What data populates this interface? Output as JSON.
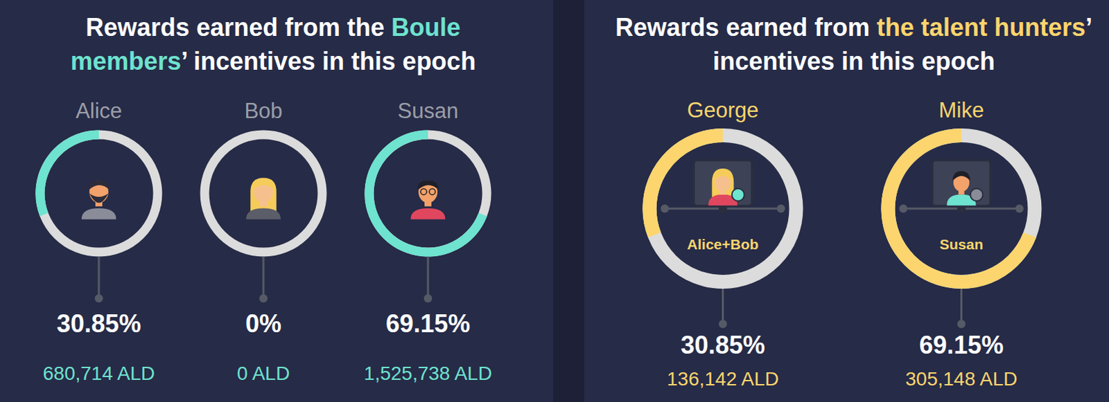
{
  "chart_data": [
    {
      "type": "donut",
      "title": [
        "Rewards earned from the ",
        "Boule members",
        "’ incentives in this epoch"
      ],
      "categories": [
        "Alice",
        "Bob",
        "Susan"
      ],
      "values": [
        30.85,
        0,
        69.15
      ],
      "value_labels": [
        "30.85%",
        "0%",
        "69.15%"
      ],
      "amounts": [
        680714,
        0,
        1525738
      ],
      "amount_labels": [
        "680,714 ALD",
        "0 ALD",
        "1,525,738 ALD"
      ],
      "color": "#6ee3cf",
      "data_labels": true
    },
    {
      "type": "donut",
      "title": [
        "Rewards earned from ",
        "the talent hunters",
        "’ incentives in this epoch"
      ],
      "categories": [
        "George",
        "Mike"
      ],
      "members": [
        "Alice+Bob",
        "Susan"
      ],
      "values": [
        30.85,
        69.15
      ],
      "value_labels": [
        "30.85%",
        "69.15%"
      ],
      "amounts": [
        136142,
        305148
      ],
      "amount_labels": [
        "136,142 ALD",
        "305,148 ALD"
      ],
      "color": "#fcd56e",
      "data_labels": true
    }
  ]
}
